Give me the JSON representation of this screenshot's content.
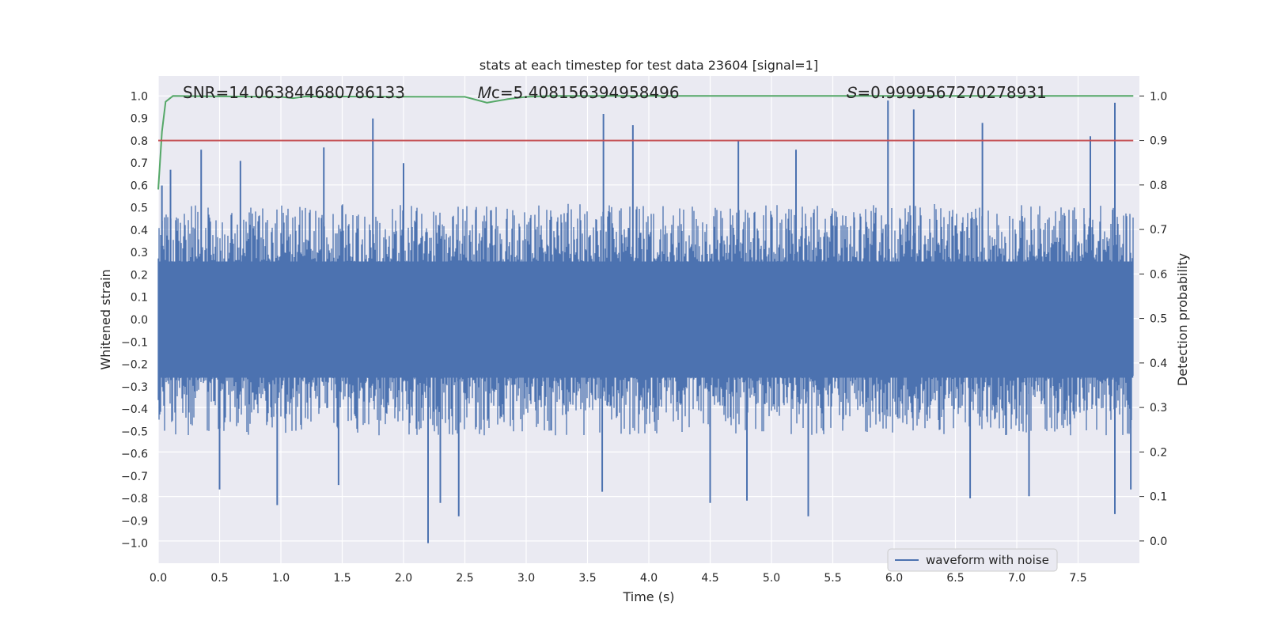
{
  "chart_data": {
    "type": "line",
    "title": "stats at each timestep for test data 23604 [signal=1]",
    "xlabel": "Time (s)",
    "ylabel": "Whitened strain",
    "y2label": "Detection probability",
    "xlim": [
      0.0,
      8.0
    ],
    "ylim": [
      -1.09,
      1.09
    ],
    "y2lim": [
      -0.05,
      1.045
    ],
    "x_ticks": [
      0.0,
      0.5,
      1.0,
      1.5,
      2.0,
      2.5,
      3.0,
      3.5,
      4.0,
      4.5,
      5.0,
      5.5,
      6.0,
      6.5,
      7.0,
      7.5
    ],
    "x_tick_labels": [
      "0.0",
      "0.5",
      "1.0",
      "1.5",
      "2.0",
      "2.5",
      "3.0",
      "3.5",
      "4.0",
      "4.5",
      "5.0",
      "5.5",
      "6.0",
      "6.5",
      "7.0",
      "7.5"
    ],
    "y_ticks": [
      1.0,
      0.9,
      0.8,
      0.7,
      0.6,
      0.5,
      0.4,
      0.3,
      0.2,
      0.1,
      0.0,
      -0.1,
      -0.2,
      -0.3,
      -0.4,
      -0.5,
      -0.6,
      -0.7,
      -0.8,
      -0.9,
      -1.0
    ],
    "y_tick_labels": [
      "1.0",
      "0.9",
      "0.8",
      "0.7",
      "0.6",
      "0.5",
      "0.4",
      "0.3",
      "0.2",
      "0.1",
      "0.0",
      "−0.1",
      "−0.2",
      "−0.3",
      "−0.4",
      "−0.5",
      "−0.6",
      "−0.7",
      "−0.8",
      "−0.9",
      "−1.0"
    ],
    "y2_ticks": [
      1.0,
      0.9,
      0.8,
      0.7,
      0.6,
      0.5,
      0.4,
      0.3,
      0.2,
      0.1,
      0.0
    ],
    "y2_tick_labels": [
      "1.0",
      "0.9",
      "0.8",
      "0.7",
      "0.6",
      "0.5",
      "0.4",
      "0.3",
      "0.2",
      "0.1",
      "0.0"
    ],
    "grid": true,
    "legend": {
      "location": "lower-right",
      "entries": [
        "waveform with noise"
      ]
    },
    "annotations": [
      {
        "text": "SNR=14.063844680786133"
      },
      {
        "text": "𝑀c=5.408156394958496"
      },
      {
        "text": "𝑆=0.9999567270278931"
      }
    ],
    "series": [
      {
        "name": "waveform with noise",
        "axis": "left",
        "color": "#4c72b0",
        "kind": "noise",
        "envelope": {
          "typical_max": 0.45,
          "typical_min": -0.45
        },
        "peaks": [
          {
            "x": 0.03,
            "y": 0.6
          },
          {
            "x": 0.1,
            "y": 0.67
          },
          {
            "x": 0.35,
            "y": 0.76
          },
          {
            "x": 0.67,
            "y": 0.71
          },
          {
            "x": 1.35,
            "y": 0.77
          },
          {
            "x": 1.75,
            "y": 0.9
          },
          {
            "x": 2.0,
            "y": 0.7
          },
          {
            "x": 3.63,
            "y": 0.92
          },
          {
            "x": 3.87,
            "y": 0.87
          },
          {
            "x": 4.73,
            "y": 0.8
          },
          {
            "x": 5.2,
            "y": 0.76
          },
          {
            "x": 5.95,
            "y": 0.98
          },
          {
            "x": 6.16,
            "y": 0.94
          },
          {
            "x": 6.72,
            "y": 0.88
          },
          {
            "x": 7.6,
            "y": 0.82
          },
          {
            "x": 7.8,
            "y": 0.97
          }
        ],
        "troughs": [
          {
            "x": 0.5,
            "y": -0.76
          },
          {
            "x": 0.97,
            "y": -0.83
          },
          {
            "x": 1.47,
            "y": -0.74
          },
          {
            "x": 2.2,
            "y": -1.0
          },
          {
            "x": 2.3,
            "y": -0.82
          },
          {
            "x": 2.45,
            "y": -0.88
          },
          {
            "x": 3.62,
            "y": -0.77
          },
          {
            "x": 4.5,
            "y": -0.82
          },
          {
            "x": 4.8,
            "y": -0.81
          },
          {
            "x": 5.3,
            "y": -0.88
          },
          {
            "x": 6.62,
            "y": -0.8
          },
          {
            "x": 7.1,
            "y": -0.79
          },
          {
            "x": 7.8,
            "y": -0.87
          },
          {
            "x": 7.93,
            "y": -0.76
          }
        ]
      },
      {
        "name": "",
        "axis": "right",
        "color": "#55a868",
        "x": [
          0.0,
          0.03,
          0.06,
          0.12,
          1.0,
          1.1,
          1.2,
          2.5,
          2.68,
          2.85,
          3.0,
          3.2,
          7.95
        ],
        "y": [
          0.79,
          0.92,
          0.987,
          1.0,
          0.998,
          0.995,
          0.999,
          0.998,
          0.985,
          0.993,
          0.998,
          1.0,
          1.0
        ]
      },
      {
        "name": "",
        "axis": "right",
        "color": "#c44e52",
        "x": [
          0.0,
          7.95
        ],
        "y": [
          0.9,
          0.9
        ]
      }
    ]
  }
}
